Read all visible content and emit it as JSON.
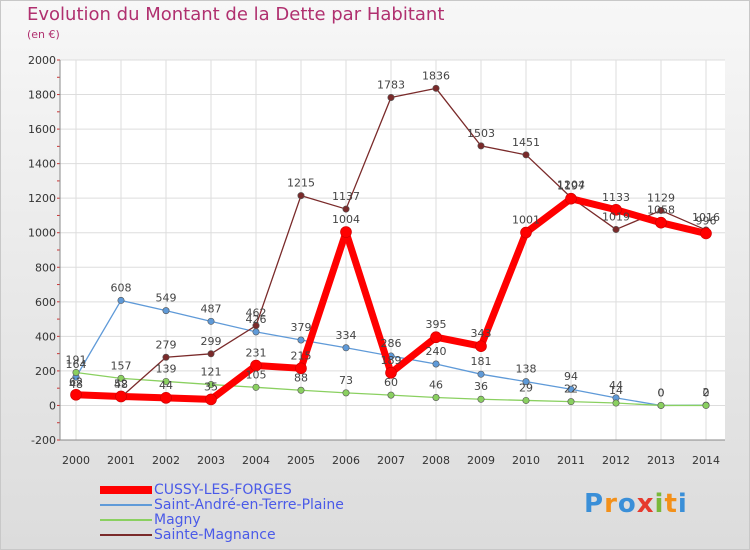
{
  "title": "Evolution du Montant de la Dette par Habitant",
  "subtitle": "(en €)",
  "brand": {
    "letters": [
      "P",
      "r",
      "o",
      "x",
      "i",
      "t",
      "i"
    ],
    "colors": [
      "#3a8fd8",
      "#f39019",
      "#3a8fd8",
      "#e63a2e",
      "#7ab83a",
      "#f39019",
      "#3a8fd8"
    ]
  },
  "chart_data": {
    "type": "line",
    "x": [
      "2000",
      "2001",
      "2002",
      "2003",
      "2004",
      "2005",
      "2006",
      "2007",
      "2008",
      "2009",
      "2010",
      "2011",
      "2012",
      "2013",
      "2014"
    ],
    "y_ticks": [
      "2000",
      "1800",
      "1600",
      "1400",
      "1200",
      "1000",
      "800",
      "600",
      "400",
      "200",
      "0",
      "-200"
    ],
    "ylim": [
      -200,
      2000
    ],
    "grid": true,
    "legend_position": "bottom-left",
    "series": [
      {
        "name": "CUSSY-LES-FORGES",
        "color": "#ff0000",
        "values": [
          62,
          52,
          44,
          35,
          231,
          215,
          1004,
          189,
          395,
          343,
          1001,
          1197,
          1133,
          1058,
          996
        ],
        "labels": [
          "62",
          "52",
          "44",
          "35",
          "231",
          "215",
          "1004",
          "189",
          "395",
          "343",
          "1001",
          "1197",
          "1133",
          "1058",
          "996"
        ]
      },
      {
        "name": "Saint-André-en-Terre-Plaine",
        "color": "#5f9ad8",
        "values": [
          164,
          608,
          549,
          487,
          426,
          379,
          334,
          286,
          240,
          181,
          138,
          94,
          44,
          0,
          2
        ],
        "labels": [
          "164",
          "608",
          "549",
          "487",
          "426",
          "379",
          "334",
          "286",
          "240",
          "181",
          "138",
          "94",
          "44",
          "0",
          "2"
        ]
      },
      {
        "name": "Magny",
        "color": "#8ad060",
        "values": [
          191,
          157,
          139,
          121,
          105,
          88,
          73,
          60,
          46,
          36,
          29,
          22,
          14,
          0,
          0
        ],
        "labels": [
          "191",
          "157",
          "139",
          "121",
          "105",
          "88",
          "73",
          "60",
          "46",
          "36",
          "29",
          "22",
          "14",
          "0",
          "0"
        ]
      },
      {
        "name": "Sainte-Magnance",
        "color": "#7a2a2a",
        "values": [
          48,
          48,
          279,
          299,
          462,
          1215,
          1137,
          1783,
          1836,
          1503,
          1451,
          1204,
          1019,
          1129,
          1016
        ],
        "labels": [
          "48",
          "48",
          "279",
          "299",
          "462",
          "1215",
          "1137",
          "1783",
          "1836",
          "1503",
          "1451",
          "1204",
          "1019",
          "1129",
          "1016"
        ]
      }
    ]
  }
}
